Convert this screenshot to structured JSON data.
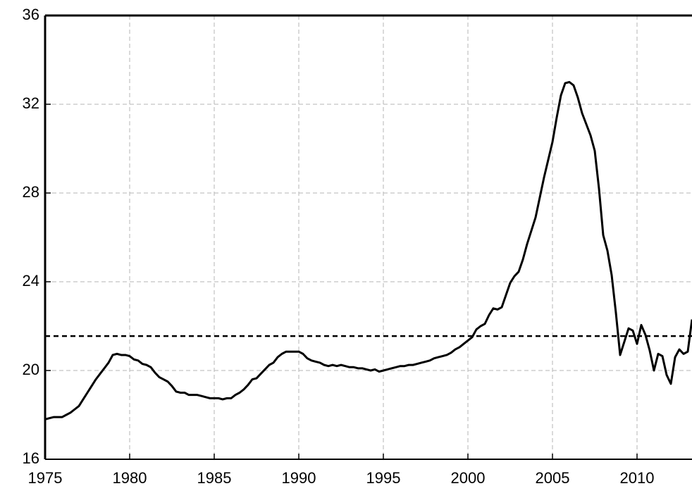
{
  "chart_data": {
    "type": "line",
    "x": [
      1975,
      1975.25,
      1975.5,
      1975.75,
      1976,
      1976.25,
      1976.5,
      1976.75,
      1977,
      1977.25,
      1977.5,
      1977.75,
      1978,
      1978.25,
      1978.5,
      1978.75,
      1979,
      1979.25,
      1979.5,
      1979.75,
      1980,
      1980.25,
      1980.5,
      1980.75,
      1981,
      1981.25,
      1981.5,
      1981.75,
      1982,
      1982.25,
      1982.5,
      1982.75,
      1983,
      1983.25,
      1983.5,
      1983.75,
      1984,
      1984.25,
      1984.5,
      1984.75,
      1985,
      1985.25,
      1985.5,
      1985.75,
      1986,
      1986.25,
      1986.5,
      1986.75,
      1987,
      1987.25,
      1987.5,
      1987.75,
      1988,
      1988.25,
      1988.5,
      1988.75,
      1989,
      1989.25,
      1989.5,
      1989.75,
      1990,
      1990.25,
      1990.5,
      1990.75,
      1991,
      1991.25,
      1991.5,
      1991.75,
      1992,
      1992.25,
      1992.5,
      1992.75,
      1993,
      1993.25,
      1993.5,
      1993.75,
      1994,
      1994.25,
      1994.5,
      1994.75,
      1995,
      1995.25,
      1995.5,
      1995.75,
      1996,
      1996.25,
      1996.5,
      1996.75,
      1997,
      1997.25,
      1997.5,
      1997.75,
      1998,
      1998.25,
      1998.5,
      1998.75,
      1999,
      1999.25,
      1999.5,
      1999.75,
      2000,
      2000.25,
      2000.5,
      2000.75,
      2001,
      2001.25,
      2001.5,
      2001.75,
      2002,
      2002.25,
      2002.5,
      2002.75,
      2003,
      2003.25,
      2003.5,
      2003.75,
      2004,
      2004.25,
      2004.5,
      2004.75,
      2005,
      2005.25,
      2005.5,
      2005.75,
      2006,
      2006.25,
      2006.5,
      2006.75,
      2007,
      2007.25,
      2007.5,
      2007.75,
      2008,
      2008.25,
      2008.5,
      2008.75,
      2009,
      2009.25,
      2009.5,
      2009.75,
      2010,
      2010.25,
      2010.5,
      2010.75,
      2011,
      2011.25,
      2011.5,
      2011.75,
      2012,
      2012.25,
      2012.5,
      2012.75,
      2013,
      2013.25
    ],
    "series": [
      {
        "color": "#000000",
        "values": [
          17.8,
          17.85,
          17.9,
          17.9,
          17.9,
          18.0,
          18.1,
          18.25,
          18.4,
          18.7,
          19.0,
          19.3,
          19.6,
          19.85,
          20.1,
          20.35,
          20.7,
          20.75,
          20.7,
          20.7,
          20.65,
          20.5,
          20.45,
          20.3,
          20.25,
          20.15,
          19.9,
          19.7,
          19.6,
          19.5,
          19.3,
          19.05,
          19.0,
          19.0,
          18.9,
          18.9,
          18.9,
          18.85,
          18.8,
          18.75,
          18.75,
          18.75,
          18.7,
          18.75,
          18.75,
          18.9,
          19.0,
          19.15,
          19.35,
          19.6,
          19.65,
          19.85,
          20.05,
          20.25,
          20.35,
          20.6,
          20.75,
          20.85,
          20.85,
          20.85,
          20.85,
          20.75,
          20.55,
          20.45,
          20.4,
          20.35,
          20.25,
          20.2,
          20.25,
          20.2,
          20.25,
          20.2,
          20.15,
          20.15,
          20.1,
          20.1,
          20.05,
          20.0,
          20.05,
          19.95,
          20.0,
          20.05,
          20.1,
          20.15,
          20.2,
          20.2,
          20.25,
          20.25,
          20.3,
          20.35,
          20.4,
          20.45,
          20.55,
          20.6,
          20.65,
          20.7,
          20.8,
          20.95,
          21.05,
          21.2,
          21.35,
          21.5,
          21.85,
          22.0,
          22.1,
          22.5,
          22.8,
          22.75,
          22.85,
          23.4,
          23.95,
          24.25,
          24.45,
          25.0,
          25.7,
          26.3,
          26.9,
          27.8,
          28.7,
          29.5,
          30.3,
          31.4,
          32.4,
          32.95,
          33.0,
          32.85,
          32.3,
          31.6,
          31.1,
          30.6,
          29.9,
          28.2,
          26.1,
          25.4,
          24.3,
          22.6,
          20.7,
          21.3,
          21.9,
          21.8,
          21.2,
          22.05,
          21.6,
          20.9,
          20.0,
          20.75,
          20.65,
          19.8,
          19.4,
          20.6,
          20.95,
          20.75,
          20.85,
          22.3
        ]
      }
    ],
    "hline": 21.55,
    "xlim": [
      1975,
      2013.25
    ],
    "xticks": [
      1975,
      1980,
      1985,
      1990,
      1995,
      2000,
      2005,
      2010
    ],
    "ylim": [
      16,
      36
    ],
    "yticks": [
      16,
      20,
      24,
      28,
      32,
      36
    ],
    "grid": true
  }
}
